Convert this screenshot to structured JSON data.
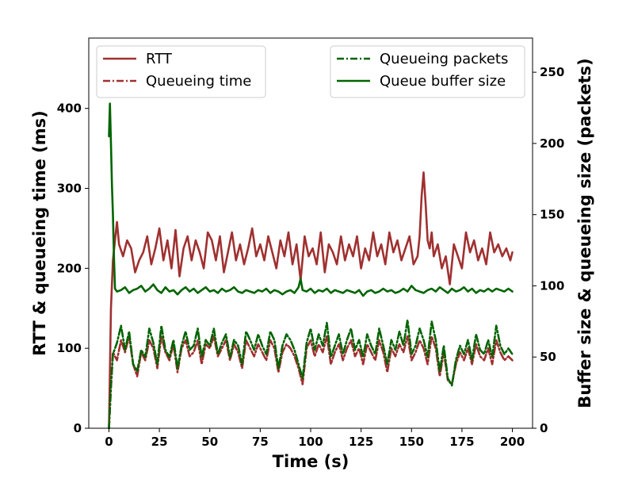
{
  "chart_data": {
    "type": "line",
    "xlabel": "Time (s)",
    "ylabel_left": "RTT & queueing time (ms)",
    "ylabel_right": "Buffer size & queueing size (packets)",
    "xlim": [
      -10,
      210
    ],
    "ylim_left": [
      0,
      488
    ],
    "ylim_right": [
      0,
      274
    ],
    "xticks": [
      "0",
      "25",
      "50",
      "75",
      "100",
      "125",
      "150",
      "175",
      "200"
    ],
    "yticks_left": [
      "0",
      "100",
      "200",
      "300",
      "400"
    ],
    "yticks_right": [
      "0",
      "50",
      "100",
      "150",
      "200",
      "250"
    ],
    "legend_left": [
      {
        "label": "RTT",
        "color": "#a03030",
        "style": "solid"
      },
      {
        "label": "Queueing time",
        "color": "#a03030",
        "style": "dashdot"
      }
    ],
    "legend_right": [
      {
        "label": "Queueing packets",
        "color": "#006400",
        "style": "dashdot"
      },
      {
        "label": "Queue buffer size",
        "color": "#006400",
        "style": "solid"
      }
    ],
    "series": [
      {
        "name": "RTT",
        "axis": "left",
        "color": "#a03030",
        "style": "solid",
        "x": [
          0,
          1,
          2,
          3,
          4,
          5,
          7,
          9,
          11,
          13,
          15,
          17,
          19,
          21,
          23,
          25,
          27,
          29,
          31,
          33,
          35,
          37,
          39,
          41,
          43,
          45,
          47,
          49,
          51,
          53,
          55,
          57,
          59,
          61,
          63,
          65,
          67,
          69,
          71,
          73,
          75,
          77,
          79,
          81,
          83,
          85,
          87,
          89,
          91,
          93,
          95,
          97,
          99,
          101,
          103,
          105,
          107,
          109,
          111,
          113,
          115,
          117,
          119,
          121,
          123,
          125,
          127,
          129,
          131,
          133,
          135,
          137,
          139,
          141,
          143,
          145,
          147,
          149,
          151,
          153,
          154,
          155,
          156,
          157,
          158,
          159,
          160,
          161,
          163,
          165,
          167,
          169,
          171,
          173,
          175,
          177,
          179,
          181,
          183,
          185,
          187,
          189,
          191,
          193,
          195,
          197,
          199,
          200
        ],
        "y": [
          0,
          150,
          210,
          235,
          258,
          230,
          215,
          235,
          225,
          195,
          210,
          220,
          240,
          205,
          225,
          250,
          210,
          235,
          200,
          248,
          190,
          225,
          240,
          210,
          235,
          220,
          200,
          245,
          235,
          210,
          240,
          195,
          220,
          245,
          210,
          230,
          205,
          225,
          250,
          215,
          230,
          210,
          240,
          220,
          200,
          235,
          215,
          245,
          205,
          230,
          185,
          240,
          215,
          225,
          205,
          245,
          195,
          230,
          220,
          205,
          240,
          210,
          230,
          215,
          240,
          200,
          225,
          210,
          245,
          215,
          230,
          205,
          245,
          220,
          235,
          210,
          225,
          240,
          205,
          215,
          240,
          290,
          320,
          280,
          235,
          225,
          245,
          215,
          230,
          200,
          215,
          180,
          230,
          215,
          200,
          245,
          220,
          235,
          210,
          225,
          205,
          245,
          220,
          230,
          215,
          225,
          210,
          220
        ]
      },
      {
        "name": "Queueing time",
        "axis": "left",
        "color": "#a03030",
        "style": "dashdot",
        "x": [
          0,
          1,
          2,
          4,
          6,
          8,
          10,
          12,
          14,
          16,
          18,
          20,
          22,
          24,
          26,
          28,
          30,
          32,
          34,
          36,
          38,
          40,
          42,
          44,
          46,
          48,
          50,
          52,
          54,
          56,
          58,
          60,
          62,
          64,
          66,
          68,
          70,
          72,
          74,
          76,
          78,
          80,
          82,
          84,
          86,
          88,
          90,
          92,
          94,
          96,
          98,
          100,
          102,
          104,
          106,
          108,
          110,
          112,
          114,
          116,
          118,
          120,
          122,
          124,
          126,
          128,
          130,
          132,
          134,
          136,
          138,
          140,
          142,
          144,
          146,
          148,
          150,
          152,
          154,
          156,
          158,
          160,
          162,
          164,
          166,
          168,
          170,
          172,
          174,
          176,
          178,
          180,
          182,
          184,
          186,
          188,
          190,
          192,
          194,
          196,
          198,
          200
        ],
        "y": [
          0,
          50,
          95,
          85,
          110,
          95,
          115,
          80,
          65,
          95,
          85,
          110,
          100,
          75,
          115,
          95,
          85,
          105,
          70,
          100,
          110,
          90,
          95,
          110,
          80,
          105,
          100,
          115,
          90,
          100,
          110,
          85,
          105,
          95,
          75,
          110,
          100,
          90,
          105,
          95,
          85,
          110,
          100,
          70,
          95,
          105,
          100,
          90,
          75,
          55,
          100,
          110,
          90,
          105,
          95,
          115,
          80,
          95,
          105,
          85,
          100,
          110,
          90,
          100,
          80,
          105,
          95,
          85,
          110,
          95,
          70,
          100,
          90,
          105,
          95,
          115,
          85,
          95,
          110,
          100,
          80,
          115,
          100,
          65,
          95,
          60,
          55,
          80,
          95,
          85,
          100,
          80,
          105,
          90,
          85,
          100,
          80,
          110,
          95,
          85,
          90,
          85
        ]
      },
      {
        "name": "Queueing packets",
        "axis": "right",
        "color": "#006400",
        "style": "dashdot",
        "x": [
          0,
          1,
          2,
          4,
          6,
          8,
          10,
          12,
          14,
          16,
          18,
          20,
          22,
          24,
          26,
          28,
          30,
          32,
          34,
          36,
          38,
          40,
          42,
          44,
          46,
          48,
          50,
          52,
          54,
          56,
          58,
          60,
          62,
          64,
          66,
          68,
          70,
          72,
          74,
          76,
          78,
          80,
          82,
          84,
          86,
          88,
          90,
          92,
          94,
          96,
          98,
          100,
          102,
          104,
          106,
          108,
          110,
          112,
          114,
          116,
          118,
          120,
          122,
          124,
          126,
          128,
          130,
          132,
          134,
          136,
          138,
          140,
          142,
          144,
          146,
          148,
          150,
          152,
          154,
          156,
          158,
          160,
          162,
          164,
          166,
          168,
          170,
          172,
          174,
          176,
          178,
          180,
          182,
          184,
          186,
          188,
          190,
          192,
          194,
          196,
          198,
          200
        ],
        "y": [
          0,
          30,
          52,
          60,
          72,
          55,
          68,
          45,
          40,
          55,
          50,
          70,
          60,
          45,
          72,
          55,
          50,
          62,
          42,
          58,
          68,
          55,
          58,
          70,
          50,
          62,
          58,
          70,
          52,
          60,
          66,
          50,
          62,
          58,
          45,
          68,
          62,
          55,
          66,
          58,
          52,
          68,
          62,
          42,
          58,
          66,
          62,
          55,
          45,
          35,
          60,
          70,
          55,
          66,
          58,
          74,
          50,
          58,
          66,
          52,
          62,
          70,
          55,
          62,
          50,
          66,
          58,
          52,
          70,
          58,
          45,
          62,
          55,
          68,
          58,
          76,
          52,
          58,
          70,
          62,
          50,
          75,
          62,
          40,
          58,
          35,
          30,
          48,
          58,
          52,
          62,
          48,
          66,
          55,
          52,
          62,
          50,
          72,
          58,
          52,
          56,
          52
        ]
      },
      {
        "name": "Queue buffer size",
        "axis": "right",
        "color": "#006400",
        "style": "solid",
        "x": [
          0,
          0.5,
          1,
          1.5,
          2,
          2.5,
          3,
          4,
          6,
          8,
          10,
          12,
          14,
          16,
          18,
          20,
          22,
          24,
          26,
          28,
          30,
          32,
          34,
          36,
          38,
          40,
          42,
          44,
          46,
          48,
          50,
          52,
          54,
          56,
          58,
          60,
          62,
          64,
          66,
          68,
          70,
          72,
          74,
          76,
          78,
          80,
          82,
          84,
          86,
          88,
          90,
          92,
          94,
          95,
          96,
          98,
          100,
          102,
          104,
          106,
          108,
          110,
          112,
          114,
          116,
          118,
          120,
          122,
          124,
          126,
          128,
          130,
          132,
          134,
          136,
          138,
          140,
          142,
          144,
          146,
          148,
          150,
          152,
          154,
          156,
          158,
          160,
          162,
          164,
          166,
          168,
          170,
          172,
          174,
          176,
          178,
          180,
          182,
          184,
          186,
          188,
          190,
          192,
          194,
          196,
          198,
          200
        ],
        "y": [
          205,
          228,
          200,
          170,
          150,
          120,
          98,
          96,
          97,
          99,
          95,
          97,
          98,
          100,
          96,
          98,
          101,
          97,
          95,
          99,
          96,
          97,
          94,
          97,
          99,
          96,
          98,
          95,
          97,
          99,
          96,
          97,
          95,
          98,
          96,
          97,
          99,
          96,
          95,
          97,
          96,
          95,
          97,
          96,
          98,
          95,
          97,
          96,
          94,
          96,
          97,
          95,
          99,
          105,
          97,
          96,
          98,
          95,
          97,
          96,
          98,
          95,
          97,
          96,
          95,
          97,
          96,
          95,
          97,
          93,
          96,
          97,
          95,
          96,
          98,
          96,
          97,
          95,
          96,
          98,
          96,
          100,
          97,
          96,
          95,
          97,
          98,
          96,
          99,
          97,
          95,
          98,
          96,
          97,
          99,
          96,
          98,
          95,
          97,
          96,
          98,
          96,
          98,
          97,
          96,
          98,
          96
        ]
      }
    ]
  }
}
